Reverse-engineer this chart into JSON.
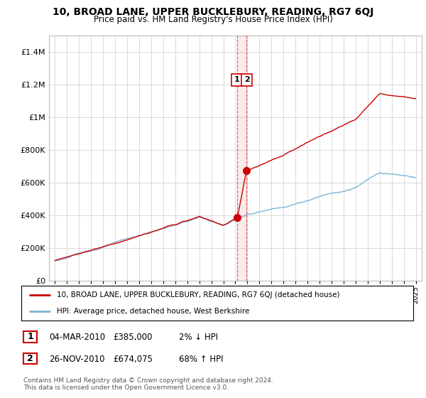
{
  "title": "10, BROAD LANE, UPPER BUCKLEBURY, READING, RG7 6QJ",
  "subtitle": "Price paid vs. HM Land Registry's House Price Index (HPI)",
  "ylim": [
    0,
    1500000
  ],
  "yticks": [
    0,
    200000,
    400000,
    600000,
    800000,
    1000000,
    1200000,
    1400000
  ],
  "ytick_labels": [
    "£0",
    "£200K",
    "£400K",
    "£600K",
    "£800K",
    "£1M",
    "£1.2M",
    "£1.4M"
  ],
  "xlim_start": 1994.5,
  "xlim_end": 2025.5,
  "sale1_year": 2010.17,
  "sale1_price": 385000,
  "sale2_year": 2010.9,
  "sale2_price": 674075,
  "legend_line1": "10, BROAD LANE, UPPER BUCKLEBURY, READING, RG7 6QJ (detached house)",
  "legend_line2": "HPI: Average price, detached house, West Berkshire",
  "table_row1_num": "1",
  "table_row1_date": "04-MAR-2010",
  "table_row1_price": "£385,000",
  "table_row1_hpi": "2% ↓ HPI",
  "table_row2_num": "2",
  "table_row2_date": "26-NOV-2010",
  "table_row2_price": "£674,075",
  "table_row2_hpi": "68% ↑ HPI",
  "footer": "Contains HM Land Registry data © Crown copyright and database right 2024.\nThis data is licensed under the Open Government Licence v3.0.",
  "red_color": "#cc0000",
  "blue_color": "#7fb3d3",
  "grid_color": "#cccccc",
  "title_fontsize": 10,
  "subtitle_fontsize": 8.5
}
